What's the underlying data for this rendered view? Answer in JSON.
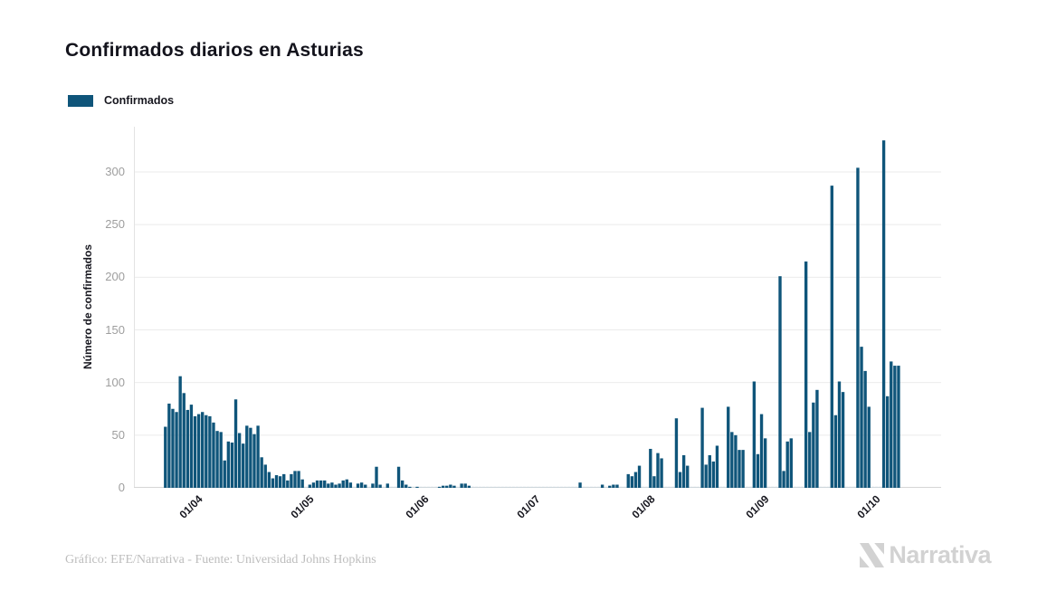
{
  "chart_data": {
    "type": "bar",
    "title": "Confirmados diarios en Asturias",
    "ylabel": "Número de confirmados",
    "xlabel": "",
    "ylim": [
      0,
      343
    ],
    "yticks": [
      0,
      50,
      100,
      150,
      200,
      250,
      300
    ],
    "grid": true,
    "legend_position": "top-left",
    "bar_color": "#0f557a",
    "zero_mark_color": "#ccd6dc",
    "x_tick_labels": [
      "01/04",
      "01/05",
      "01/06",
      "01/07",
      "01/08",
      "01/09",
      "01/10"
    ],
    "x_tick_indices": [
      15,
      45,
      76,
      106,
      137,
      168,
      198
    ],
    "series": [
      {
        "name": "Confirmados",
        "values": [
          0,
          0,
          0,
          0,
          0,
          0,
          0,
          0,
          58,
          80,
          75,
          72,
          106,
          90,
          74,
          79,
          68,
          70,
          72,
          69,
          68,
          62,
          54,
          53,
          26,
          44,
          43,
          84,
          52,
          42,
          59,
          57,
          51,
          59,
          29,
          22,
          15,
          9,
          12,
          11,
          13,
          7,
          13,
          16,
          16,
          8,
          0,
          3,
          5,
          7,
          7,
          7,
          4,
          5,
          3,
          4,
          7,
          8,
          5,
          0,
          4,
          5,
          3,
          0,
          4,
          20,
          3,
          0,
          4,
          0,
          0,
          20,
          7,
          3,
          1,
          0,
          1,
          0,
          0,
          0,
          0,
          0,
          1,
          2,
          2,
          3,
          2,
          0,
          4,
          4,
          2,
          0,
          0,
          0,
          0,
          0,
          0,
          0,
          0,
          0,
          0,
          0,
          0,
          0,
          0,
          0,
          0,
          0,
          0,
          0,
          0,
          0,
          0,
          0,
          0,
          0,
          0,
          0,
          0,
          0,
          5,
          0,
          0,
          0,
          0,
          0,
          3,
          0,
          2,
          3,
          3,
          0,
          0,
          13,
          11,
          15,
          21,
          0,
          0,
          37,
          11,
          33,
          28,
          0,
          0,
          0,
          66,
          15,
          31,
          21,
          0,
          0,
          0,
          76,
          22,
          31,
          25,
          40,
          0,
          0,
          77,
          53,
          50,
          36,
          36,
          0,
          0,
          101,
          32,
          70,
          47,
          0,
          0,
          0,
          201,
          16,
          44,
          47,
          0,
          0,
          0,
          215,
          53,
          81,
          93,
          0,
          0,
          0,
          287,
          69,
          101,
          91,
          0,
          0,
          0,
          304,
          134,
          111,
          77,
          0,
          0,
          0,
          330,
          87,
          120,
          116,
          116,
          0,
          0,
          0,
          0,
          0,
          0,
          0,
          0,
          0,
          0,
          0
        ]
      }
    ]
  },
  "footer": {
    "credit": "Gráfico: EFE/Narrativa - Fuente: Universidad Johns Hopkins",
    "logo_text": "Narrativa"
  }
}
